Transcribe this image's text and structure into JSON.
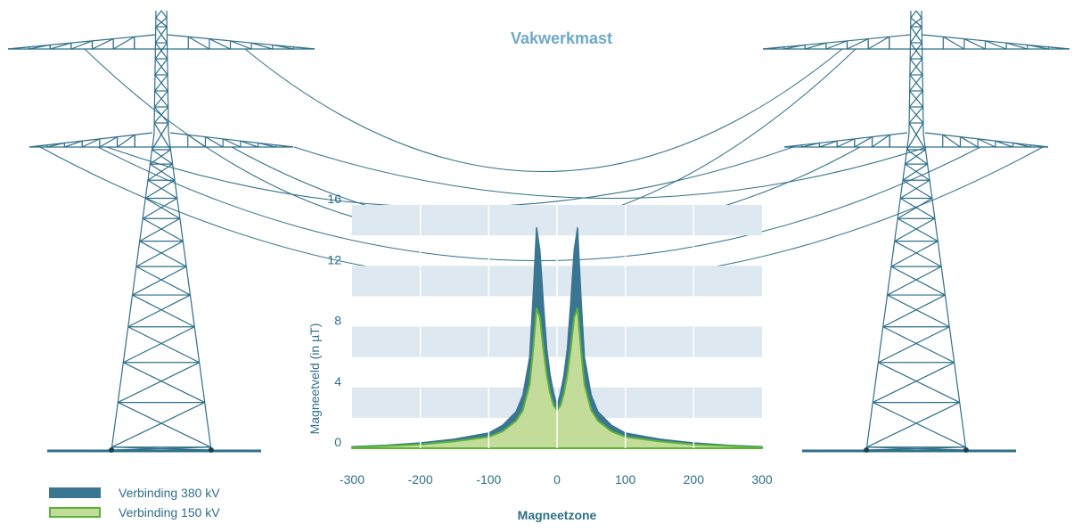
{
  "title": "Vakwerkmast",
  "colors": {
    "tower": "#2f6f8a",
    "band": "#dde8f0",
    "series_380": "#3a7592",
    "series_150": "#c4dc9a",
    "series_150_stroke": "#5cb33a",
    "text": "#2f6f8a",
    "title": "#6fa8c8"
  },
  "legend": [
    {
      "label": "Verbinding 380 kV"
    },
    {
      "label": "Verbinding 150 kV"
    }
  ],
  "chart_data": {
    "type": "area",
    "xlabel": "Magneetzone",
    "ylabel": "Magneetveld (in µT)",
    "xlim": [
      -300,
      300
    ],
    "ylim": [
      0,
      16
    ],
    "xticks": [
      -300,
      -200,
      -100,
      0,
      100,
      200,
      300
    ],
    "yticks": [
      0,
      4,
      8,
      12,
      16
    ],
    "grid": "horizontal bands",
    "legend_position": "bottom-left",
    "series": [
      {
        "name": "Verbinding 380 kV",
        "x": [
          -300,
          -250,
          -200,
          -150,
          -100,
          -80,
          -60,
          -50,
          -40,
          -35,
          -30,
          -25,
          -20,
          -15,
          -10,
          -5,
          0,
          5,
          10,
          15,
          20,
          25,
          30,
          35,
          40,
          50,
          60,
          80,
          100,
          150,
          200,
          250,
          300
        ],
        "y": [
          0.1,
          0.2,
          0.35,
          0.6,
          1.0,
          1.5,
          2.4,
          3.5,
          6.0,
          10.0,
          14.5,
          13.0,
          9.5,
          6.5,
          4.8,
          3.6,
          2.8,
          3.6,
          4.8,
          6.5,
          9.5,
          13.0,
          14.5,
          10.0,
          6.0,
          3.5,
          2.4,
          1.5,
          1.0,
          0.6,
          0.35,
          0.2,
          0.1
        ]
      },
      {
        "name": "Verbinding 150 kV",
        "x": [
          -300,
          -250,
          -200,
          -150,
          -100,
          -80,
          -60,
          -50,
          -40,
          -35,
          -30,
          -25,
          -20,
          -15,
          -10,
          -5,
          0,
          5,
          10,
          15,
          20,
          25,
          30,
          35,
          40,
          50,
          60,
          80,
          100,
          150,
          200,
          250,
          300
        ],
        "y": [
          0.05,
          0.15,
          0.25,
          0.45,
          0.75,
          1.1,
          1.8,
          2.5,
          4.2,
          6.5,
          9.2,
          8.6,
          6.5,
          4.8,
          3.6,
          2.8,
          2.5,
          2.8,
          3.6,
          4.8,
          6.5,
          8.6,
          9.2,
          6.5,
          4.2,
          2.5,
          1.8,
          1.1,
          0.75,
          0.45,
          0.25,
          0.15,
          0.05
        ]
      }
    ]
  }
}
